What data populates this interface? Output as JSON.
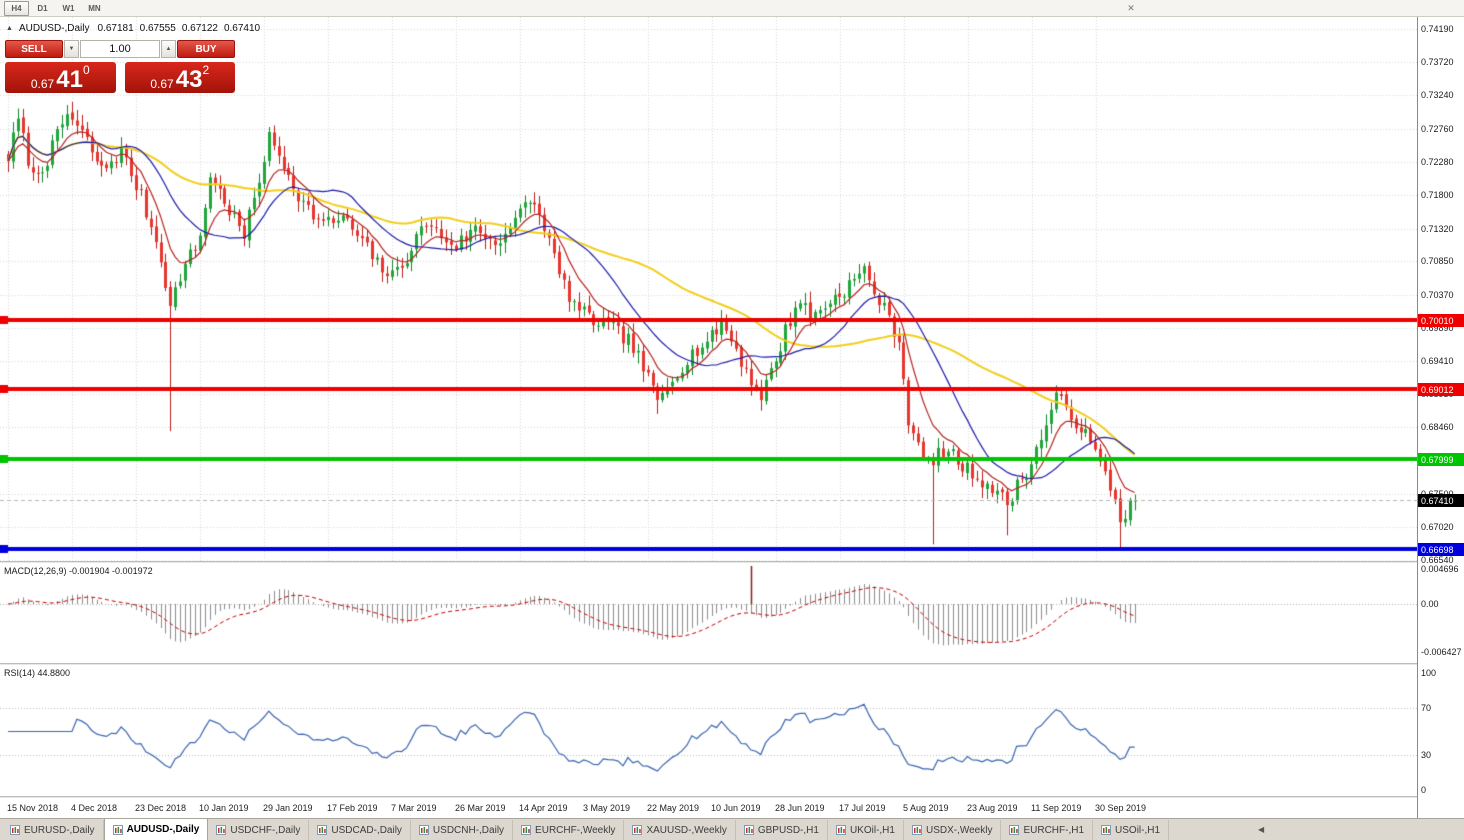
{
  "toolbar": {
    "timeframes": [
      {
        "label": "H4",
        "active": true
      },
      {
        "label": "D1",
        "active": false
      },
      {
        "label": "W1",
        "active": false
      },
      {
        "label": "MN",
        "active": false
      }
    ],
    "close_icon": "✕"
  },
  "chart": {
    "info": {
      "collapse_icon": "▲",
      "symbol": "AUDUSD-,Daily",
      "open": "0.67181",
      "high": "0.67555",
      "low": "0.67122",
      "close": "0.67410"
    },
    "one_click": {
      "sell_label": "SELL",
      "buy_label": "BUY",
      "volume": "1.00",
      "down_arrow": "▼",
      "up_arrow": "▲",
      "bid": {
        "prefix": "0.67",
        "big": "41",
        "sup": "0"
      },
      "ask": {
        "prefix": "0.67",
        "big": "43",
        "sup": "2"
      }
    },
    "price_axis": [
      "0.74190",
      "0.73720",
      "0.73240",
      "0.72760",
      "0.72280",
      "0.71800",
      "0.71320",
      "0.70850",
      "0.70370",
      "0.69890",
      "0.69410",
      "0.68930",
      "0.68460",
      "0.67980",
      "0.67500",
      "0.67020",
      "0.66540"
    ],
    "levels": [
      {
        "label": "0.70010",
        "value": 0.7001,
        "color": "#ee0000",
        "type": "resistance"
      },
      {
        "label": "0.69012",
        "value": 0.69012,
        "color": "#ee0000",
        "type": "resistance"
      },
      {
        "label": "0.67999",
        "value": 0.67999,
        "color": "#00c400",
        "type": "support"
      },
      {
        "label": "0.66698",
        "value": 0.66698,
        "color": "#0000dd",
        "type": "support"
      }
    ],
    "current_price": {
      "label": "0.67410",
      "value": 0.6741,
      "color": "#000000"
    },
    "dates": [
      "15 Nov 2018",
      "4 Dec 2018",
      "23 Dec 2018",
      "10 Jan 2019",
      "29 Jan 2019",
      "17 Feb 2019",
      "7 Mar 2019",
      "26 Mar 2019",
      "14 Apr 2019",
      "3 May 2019",
      "22 May 2019",
      "10 Jun 2019",
      "28 Jun 2019",
      "17 Jul 2019",
      "5 Aug 2019",
      "23 Aug 2019",
      "11 Sep 2019",
      "30 Sep 2019"
    ]
  },
  "macd": {
    "label": "MACD(12,26,9) -0.001904 -0.001972",
    "axis": [
      "0.004696",
      "0.00",
      "-0.006427"
    ],
    "axis_values": [
      0.004696,
      0,
      -0.006427
    ]
  },
  "rsi": {
    "label": "RSI(14) 44.8800",
    "axis": [
      "100",
      "70",
      "30",
      "0"
    ],
    "axis_values": [
      100,
      70,
      30,
      0
    ]
  },
  "tabs": {
    "items": [
      "EURUSD-,Daily",
      "AUDUSD-,Daily",
      "USDCHF-,Daily",
      "USDCAD-,Daily",
      "USDCNH-,Daily",
      "EURCHF-,Weekly",
      "XAUUSD-,Weekly",
      "GBPUSD-,H1",
      "UKOil-,H1",
      "USDX-,Weekly",
      "EURCHF-,H1",
      "USOil-,H1"
    ],
    "active_index": 1,
    "scroll_left_icon": "◀"
  },
  "chart_data": {
    "type": "candlestick",
    "symbol": "AUDUSD",
    "timeframe": "Daily",
    "bars": 230,
    "price_range": [
      0.6653,
      0.7437
    ],
    "last_close": 0.6741,
    "anchors": [
      [
        0,
        0.7235
      ],
      [
        2,
        0.7288
      ],
      [
        5,
        0.7205
      ],
      [
        8,
        0.7232
      ],
      [
        12,
        0.7298
      ],
      [
        16,
        0.7258
      ],
      [
        19,
        0.7215
      ],
      [
        23,
        0.7244
      ],
      [
        27,
        0.7178
      ],
      [
        31,
        0.7092
      ],
      [
        33,
        0.7018
      ],
      [
        35,
        0.7065
      ],
      [
        39,
        0.712
      ],
      [
        41,
        0.721
      ],
      [
        44,
        0.7172
      ],
      [
        48,
        0.712
      ],
      [
        53,
        0.7262
      ],
      [
        56,
        0.7225
      ],
      [
        60,
        0.7168
      ],
      [
        64,
        0.7138
      ],
      [
        68,
        0.7148
      ],
      [
        71,
        0.7122
      ],
      [
        75,
        0.7082
      ],
      [
        78,
        0.7062
      ],
      [
        81,
        0.7092
      ],
      [
        85,
        0.7142
      ],
      [
        88,
        0.712
      ],
      [
        91,
        0.7108
      ],
      [
        95,
        0.7132
      ],
      [
        99,
        0.7112
      ],
      [
        103,
        0.7142
      ],
      [
        106,
        0.7175
      ],
      [
        109,
        0.7138
      ],
      [
        112,
        0.7065
      ],
      [
        115,
        0.7022
      ],
      [
        118,
        0.7002
      ],
      [
        122,
        0.6992
      ],
      [
        126,
        0.6972
      ],
      [
        129,
        0.6932
      ],
      [
        132,
        0.6882
      ],
      [
        135,
        0.6918
      ],
      [
        139,
        0.6952
      ],
      [
        143,
        0.6975
      ],
      [
        145,
        0.6998
      ],
      [
        148,
        0.6958
      ],
      [
        151,
        0.6912
      ],
      [
        153,
        0.6892
      ],
      [
        156,
        0.6942
      ],
      [
        158,
        0.6985
      ],
      [
        161,
        0.7032
      ],
      [
        163,
        0.7002
      ],
      [
        166,
        0.7022
      ],
      [
        169,
        0.7038
      ],
      [
        172,
        0.7058
      ],
      [
        174,
        0.7072
      ],
      [
        176,
        0.7042
      ],
      [
        178,
        0.7015
      ],
      [
        181,
        0.6972
      ],
      [
        183,
        0.6858
      ],
      [
        185,
        0.6815
      ],
      [
        187,
        0.6792
      ],
      [
        188,
        0.6802
      ],
      [
        191,
        0.6812
      ],
      [
        194,
        0.679
      ],
      [
        197,
        0.6775
      ],
      [
        200,
        0.6758
      ],
      [
        203,
        0.6735
      ],
      [
        205,
        0.6762
      ],
      [
        208,
        0.6792
      ],
      [
        210,
        0.6832
      ],
      [
        213,
        0.6888
      ],
      [
        216,
        0.6865
      ],
      [
        218,
        0.6845
      ],
      [
        220,
        0.6822
      ],
      [
        222,
        0.6792
      ],
      [
        224,
        0.6762
      ],
      [
        226,
        0.6715
      ],
      [
        228,
        0.6732
      ],
      [
        229,
        0.6741
      ]
    ],
    "wick_overrides": {
      "33": {
        "low": 0.684
      },
      "132": {
        "low": 0.6865
      },
      "174": {
        "high": 0.7082
      },
      "188": {
        "low": 0.6677
      },
      "203": {
        "low": 0.669
      },
      "226": {
        "low": 0.6672
      }
    },
    "moving_averages": [
      {
        "period": 50,
        "color": "#f2ce1b",
        "style": "slow"
      },
      {
        "period": 18,
        "color": "#1d1da8",
        "style": "medium"
      },
      {
        "period": 8,
        "color": "#b52622",
        "style": "fast"
      }
    ],
    "candle_colors": {
      "up": "#21a63c",
      "up_stroke": "#14882c",
      "down": "#e8352e",
      "down_stroke": "#bb1f1a"
    },
    "indicators": {
      "macd": {
        "fast": 12,
        "slow": 26,
        "signal": 9,
        "values": [
          -0.001904,
          -0.001972
        ]
      },
      "rsi": {
        "period": 14,
        "value": 44.88
      }
    }
  }
}
